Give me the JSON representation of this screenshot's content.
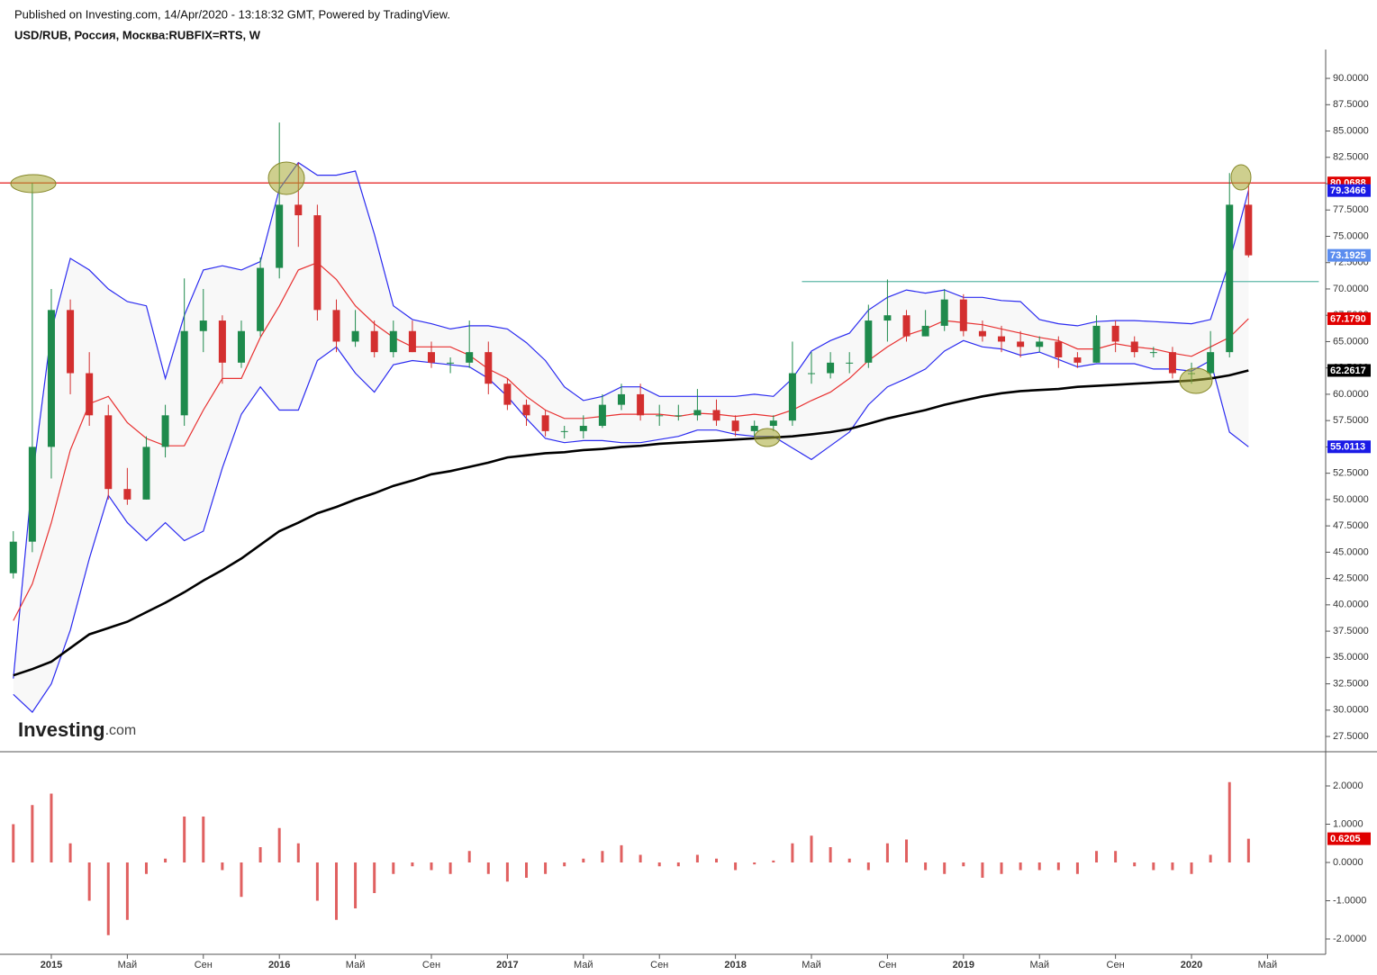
{
  "header": {
    "published": "Published on Investing.com, 14/Apr/2020 - 13:18:32 GMT, Powered by TradingView.",
    "symbol": "USD/RUB, Россия, Москва:RUBFIX=RTS, W"
  },
  "logo": {
    "brand": "Investing",
    "suffix": ".com"
  },
  "chart_data": [
    {
      "type": "candlestick",
      "x": [
        -2,
        -1,
        0,
        1,
        2,
        3,
        4,
        5,
        6,
        7,
        8,
        9,
        10,
        11,
        12,
        13,
        14,
        15,
        16,
        17,
        18,
        19,
        20,
        21,
        22,
        23,
        24,
        25,
        26,
        27,
        28,
        29,
        30,
        31,
        32,
        33,
        34,
        35,
        36,
        37,
        38,
        39,
        40,
        41,
        42,
        43,
        44,
        45,
        46,
        47,
        48,
        49,
        50,
        51,
        52,
        53,
        54,
        55,
        56,
        57,
        58,
        59,
        60,
        61,
        62,
        63
      ],
      "open": [
        43,
        46,
        55,
        68,
        62,
        58,
        51,
        50,
        55,
        58,
        66,
        67,
        63,
        66,
        72,
        78,
        77,
        68,
        65,
        66,
        64,
        66,
        64,
        63,
        63,
        64,
        61,
        59,
        58,
        56.5,
        56.5,
        57,
        59,
        60,
        58,
        58,
        58,
        58.5,
        57.5,
        56.5,
        57,
        57.5,
        62,
        62,
        63,
        63,
        67,
        67.5,
        65.5,
        66.5,
        69,
        66,
        65.5,
        65,
        64.5,
        65,
        63.5,
        63,
        66.5,
        65,
        64,
        64,
        62,
        62,
        64,
        78
      ],
      "high": [
        47,
        80.0688,
        70,
        69,
        64,
        59,
        53,
        56,
        59,
        71,
        70,
        67.5,
        67,
        73,
        85.8,
        82,
        78,
        69,
        68,
        67,
        67,
        67,
        65,
        63.5,
        67,
        65,
        61.5,
        59.5,
        58.5,
        57,
        58,
        60,
        61,
        61,
        59,
        59,
        60.5,
        59.5,
        58,
        57.5,
        58,
        65,
        64,
        64,
        64,
        68.5,
        70.9,
        68,
        68,
        70,
        69.5,
        67,
        66.5,
        66,
        65.5,
        65.5,
        64,
        67.5,
        67,
        65.5,
        64.5,
        64.5,
        63,
        66,
        81,
        80
      ],
      "low": [
        42.5,
        45,
        52,
        60,
        57,
        50,
        49.5,
        50,
        54,
        57,
        64,
        61,
        62.5,
        65.5,
        71,
        74,
        67,
        64,
        64.5,
        63.5,
        63.5,
        64,
        62.5,
        62,
        62.5,
        60,
        58.5,
        57,
        56,
        55.8,
        55.8,
        56.8,
        58.5,
        57.5,
        57,
        57.5,
        57.5,
        57,
        56,
        56,
        56.5,
        57,
        61,
        61.5,
        62,
        62.5,
        65,
        65,
        65.5,
        66,
        65.5,
        65,
        64,
        63.5,
        64,
        62.5,
        62.5,
        63,
        64,
        63.5,
        63.5,
        61.5,
        61,
        61.5,
        63.5,
        73
      ],
      "close": [
        46,
        55,
        68,
        62,
        58,
        51,
        50,
        55,
        58,
        66,
        67,
        63,
        66,
        72,
        78,
        77,
        68,
        65,
        66,
        64,
        66,
        64,
        63,
        63,
        64,
        61,
        59,
        58,
        56.5,
        56.5,
        57,
        59,
        60,
        58,
        58,
        58,
        58.5,
        57.5,
        56.5,
        57,
        57.5,
        62,
        62,
        63,
        63,
        67,
        67.5,
        65.5,
        66.5,
        69,
        66,
        65.5,
        65,
        64.5,
        65,
        63.5,
        63,
        66.5,
        65,
        64,
        64,
        62,
        62,
        64,
        78,
        73.1925
      ],
      "up_color": "#1e8a4c",
      "down_color": "#d32f2f",
      "band_fill": "#f8f8f8",
      "overlays": [
        {
          "color": "#2a2af0",
          "values": [
            33,
            52,
            66,
            72.9,
            71.8,
            70,
            68.8,
            68.4,
            61.5,
            67.5,
            71.8,
            72.2,
            71.8,
            72.6,
            79.5,
            82,
            80.8,
            80.8,
            81.2,
            75.2,
            68.4,
            67.1,
            66.7,
            66.2,
            66.5,
            66.5,
            66.2,
            64.9,
            63.2,
            60.7,
            59.4,
            59.8,
            60.7,
            60.7,
            59.8,
            59.8,
            59.8,
            59.8,
            59.8,
            60,
            59.8,
            61.5,
            64.1,
            65.1,
            65.8,
            68,
            69.2,
            69.9,
            69.6,
            69.9,
            69.2,
            69.2,
            68.9,
            68.8,
            67.1,
            66.7,
            66.5,
            66.9,
            67,
            67,
            66.9,
            66.8,
            66.7,
            67.1,
            72.6,
            79.3466
          ]
        },
        {
          "color": "#2a2af0",
          "values": [
            31.5,
            29.8,
            32.5,
            37.6,
            44.4,
            50.4,
            47.8,
            46.1,
            47.8,
            46.1,
            47,
            53,
            58.1,
            60.7,
            58.5,
            58.5,
            63.2,
            64.5,
            62,
            60.2,
            62.8,
            63.2,
            63,
            62.8,
            62.6,
            61.5,
            59.8,
            57.7,
            55.8,
            55.4,
            55.6,
            55.6,
            55.4,
            55.4,
            55.7,
            56,
            56.6,
            56.6,
            56.2,
            56,
            56,
            54.9,
            53.8,
            55.1,
            56.4,
            59,
            60.7,
            61.5,
            62.4,
            64.1,
            65.1,
            64.5,
            64.3,
            63.7,
            64,
            63.3,
            62.6,
            62.9,
            62.9,
            62.9,
            62.4,
            62.4,
            62.2,
            63.2,
            56.4,
            55.0113
          ]
        },
        {
          "color": "#e83030",
          "values": [
            38.5,
            42,
            47.8,
            54.7,
            59.1,
            59.8,
            57.3,
            55.8,
            55.1,
            55.1,
            58.5,
            61.5,
            61.5,
            65.4,
            68.4,
            71.8,
            72.5,
            70.9,
            68.4,
            66.7,
            65.4,
            64.5,
            64.5,
            64.5,
            63.7,
            62.4,
            61.5,
            59.8,
            58.5,
            57.7,
            57.7,
            57.9,
            58.1,
            58.1,
            58.1,
            57.9,
            58.2,
            58.1,
            57.9,
            58.1,
            57.9,
            58.5,
            59.4,
            60.2,
            61.5,
            63.2,
            64.5,
            65.6,
            66.2,
            67,
            66.8,
            66.6,
            66.2,
            65.8,
            65.4,
            65.1,
            64.3,
            64.3,
            64.8,
            64.5,
            64.3,
            63.9,
            63.6,
            64.5,
            65.4,
            67.179
          ]
        },
        {
          "color": "#000000",
          "values": [
            33.3,
            33.9,
            34.6,
            35.9,
            37.2,
            37.8,
            38.4,
            39.3,
            40.2,
            41.2,
            42.3,
            43.3,
            44.4,
            45.7,
            47,
            47.8,
            48.7,
            49.3,
            50,
            50.6,
            51.3,
            51.8,
            52.4,
            52.7,
            53.1,
            53.5,
            54,
            54.2,
            54.4,
            54.5,
            54.7,
            54.8,
            55,
            55.1,
            55.3,
            55.4,
            55.5,
            55.6,
            55.7,
            55.8,
            55.9,
            56,
            56.2,
            56.4,
            56.7,
            57.2,
            57.7,
            58.1,
            58.5,
            59,
            59.4,
            59.8,
            60.1,
            60.3,
            60.4,
            60.5,
            60.7,
            60.8,
            60.9,
            61,
            61.1,
            61.2,
            61.3,
            61.5,
            61.8,
            62.2617
          ]
        }
      ],
      "hlines": [
        {
          "value": 80.0688,
          "color": "#e00000"
        },
        {
          "value": 70.7,
          "color": "#5fb8a8",
          "x": [
            39.5,
            66.7
          ]
        }
      ],
      "last_values": [
        {
          "value": 80.0688,
          "color": "#e00000"
        },
        {
          "value": 79.3466,
          "color": "#1a1ae6"
        },
        {
          "value": 73.1925,
          "color": "#5b8def"
        },
        {
          "value": 67.179,
          "label": "67.1790",
          "color": "#e00000"
        },
        {
          "value": 62.2617,
          "color": "#000000"
        },
        {
          "value": 55.0113,
          "color": "#1a1ae6"
        }
      ],
      "xlim": [
        -2.7,
        67.06
      ],
      "ylim": [
        26.05,
        92.74
      ],
      "yticks": [
        {
          "value": 27.5,
          "label": "27.5000"
        },
        {
          "value": 30,
          "label": "30.0000"
        },
        {
          "value": 32.5,
          "label": "32.5000"
        },
        {
          "value": 35,
          "label": "35.0000"
        },
        {
          "value": 37.5,
          "label": "37.5000"
        },
        {
          "value": 40,
          "label": "40.0000"
        },
        {
          "value": 42.5,
          "label": "42.5000"
        },
        {
          "value": 45,
          "label": "45.0000"
        },
        {
          "value": 47.5,
          "label": "47.5000"
        },
        {
          "value": 50,
          "label": "50.0000"
        },
        {
          "value": 52.5,
          "label": "52.5000"
        },
        {
          "value": 55,
          "label": "55.0000"
        },
        {
          "value": 57.5,
          "label": "57.5000"
        },
        {
          "value": 60,
          "label": "60.0000"
        },
        {
          "value": 62.5,
          "label": "62.5000"
        },
        {
          "value": 65,
          "label": "65.0000"
        },
        {
          "value": 67.5,
          "label": "67.5000"
        },
        {
          "value": 70,
          "label": "70.0000"
        },
        {
          "value": 72.5,
          "label": "72.5000"
        },
        {
          "value": 75,
          "label": "75.0000"
        },
        {
          "value": 77.5,
          "label": "77.5000"
        },
        {
          "value": 80,
          "label": "80.0000"
        },
        {
          "value": 82.5,
          "label": "82.5000"
        },
        {
          "value": 85,
          "label": "85.0000"
        },
        {
          "value": 87.5,
          "label": "87.5000"
        },
        {
          "value": 90,
          "label": "90.0000"
        }
      ]
    },
    {
      "type": "bar",
      "color": "#e06060",
      "x": [
        -2,
        -1,
        0,
        1,
        2,
        3,
        4,
        5,
        6,
        7,
        8,
        9,
        10,
        11,
        12,
        13,
        14,
        15,
        16,
        17,
        18,
        19,
        20,
        21,
        22,
        23,
        24,
        25,
        26,
        27,
        28,
        29,
        30,
        31,
        32,
        33,
        34,
        35,
        36,
        37,
        38,
        39,
        40,
        41,
        42,
        43,
        44,
        45,
        46,
        47,
        48,
        49,
        50,
        51,
        52,
        53,
        54,
        55,
        56,
        57,
        58,
        59,
        60,
        61,
        62,
        63
      ],
      "values": [
        1.0,
        1.5,
        1.8,
        0.5,
        -1.0,
        -1.9,
        -1.5,
        -0.3,
        0.1,
        1.2,
        1.2,
        -0.2,
        -0.9,
        0.4,
        0.9,
        0.5,
        -1.0,
        -1.5,
        -1.2,
        -0.8,
        -0.3,
        -0.1,
        -0.2,
        -0.3,
        0.3,
        -0.3,
        -0.5,
        -0.4,
        -0.3,
        -0.1,
        0.1,
        0.3,
        0.45,
        0.2,
        -0.1,
        -0.1,
        0.2,
        0.1,
        -0.2,
        -0.05,
        0.05,
        0.5,
        0.7,
        0.4,
        0.1,
        -0.2,
        0.5,
        0.6,
        -0.2,
        -0.3,
        -0.1,
        -0.4,
        -0.3,
        -0.2,
        -0.2,
        -0.2,
        -0.3,
        0.3,
        0.3,
        -0.1,
        -0.2,
        -0.2,
        -0.3,
        0.2,
        2.1,
        0.6205
      ],
      "last_values": [
        {
          "value": 0.6205,
          "color": "#e00000"
        }
      ],
      "xlim": [
        -2.7,
        67.06
      ],
      "ylim": [
        -2.4,
        2.894
      ],
      "yticks": [
        {
          "value": -2,
          "label": "-2.0000"
        },
        {
          "value": -1,
          "label": "-1.0000"
        },
        {
          "value": 0,
          "label": "0.0000"
        },
        {
          "value": 1,
          "label": "1.0000"
        },
        {
          "value": 2,
          "label": "2.0000"
        }
      ],
      "xticks": [
        {
          "value": 0,
          "label": "2015"
        },
        {
          "value": 4,
          "label": "Май"
        },
        {
          "value": 8,
          "label": "Сен"
        },
        {
          "value": 12,
          "label": "2016"
        },
        {
          "value": 16,
          "label": "Май"
        },
        {
          "value": 20,
          "label": "Сен"
        },
        {
          "value": 24,
          "label": "2017"
        },
        {
          "value": 28,
          "label": "Май"
        },
        {
          "value": 32,
          "label": "Сен"
        },
        {
          "value": 36,
          "label": "2018"
        },
        {
          "value": 40,
          "label": "Май"
        },
        {
          "value": 44,
          "label": "Сен"
        },
        {
          "value": 48,
          "label": "2019"
        },
        {
          "value": 52,
          "label": "Май"
        },
        {
          "value": 56,
          "label": "Сен"
        },
        {
          "value": 60,
          "label": "2020"
        },
        {
          "value": 64,
          "label": "Май"
        }
      ]
    }
  ]
}
